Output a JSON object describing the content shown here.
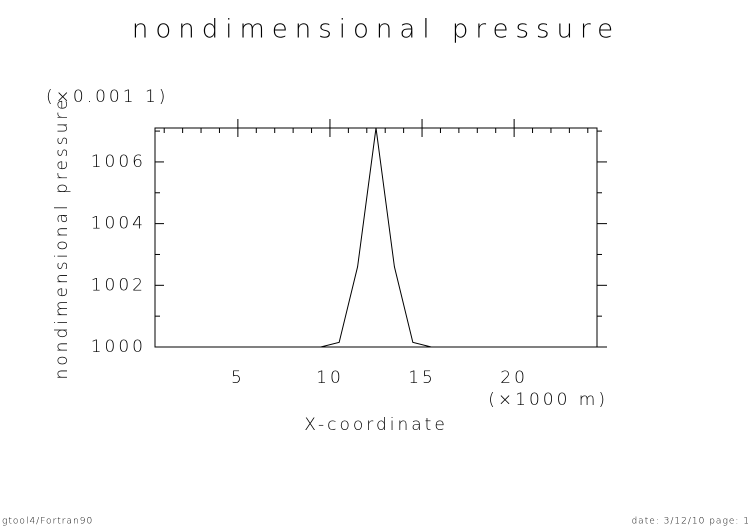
{
  "chart_data": {
    "type": "line",
    "title": "nondimensional pressure",
    "y_label": "nondimensional pressure",
    "y_multiplier": "(×0.001 1)",
    "x_unit": "(×1000 m)",
    "x_label": "X-coordinate",
    "footer_left": "gtool4/Fortran90",
    "footer_right": "date: 3/12/10 page: 1",
    "x": [
      0.5,
      1.5,
      2.5,
      3.5,
      4.5,
      5.5,
      6.5,
      7.5,
      8.5,
      9.5,
      10.5,
      11.5,
      12.5,
      13.5,
      14.5,
      15.5,
      16.5,
      17.5,
      18.5,
      19.5,
      20.5,
      21.5,
      22.5,
      23.5,
      24.5
    ],
    "series": [
      {
        "name": "nondimensional pressure",
        "color": "#000000",
        "values": [
          1000,
          1000,
          1000,
          1000,
          1000,
          1000,
          1000,
          1000,
          1000,
          1000,
          1000.15,
          1002.6,
          1007.1,
          1002.6,
          1000.15,
          1000,
          1000,
          1000,
          1000,
          1000,
          1000,
          1000,
          1000,
          1000,
          1000
        ]
      }
    ],
    "xlim": [
      0.5,
      24.5
    ],
    "xticks": [
      5,
      10,
      15,
      20
    ],
    "x_minor_ticks": [
      1,
      2,
      3,
      4,
      6,
      7,
      8,
      9,
      11,
      12,
      13,
      14,
      16,
      17,
      18,
      19,
      21,
      22,
      23,
      24
    ],
    "ylim": [
      1000,
      1007.1
    ],
    "yticks": [
      1000,
      1002,
      1004,
      1006
    ],
    "y_minor_ticks": [
      1001,
      1003,
      1005,
      1007
    ],
    "grid": false
  }
}
